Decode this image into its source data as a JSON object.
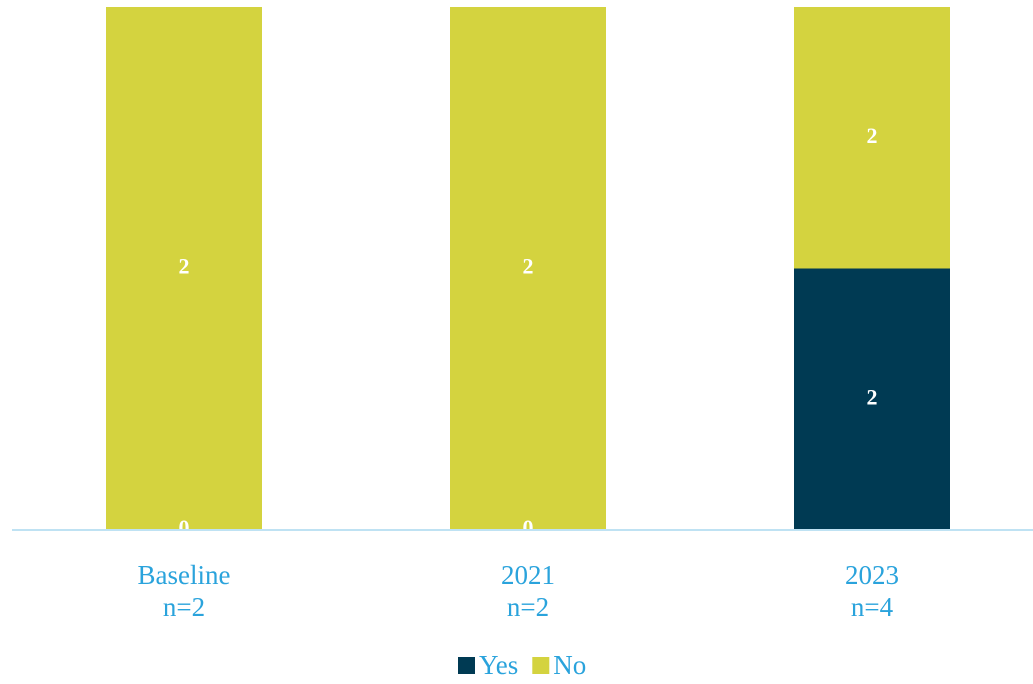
{
  "chart_data": {
    "type": "bar",
    "stacking": "percent",
    "categories": [
      [
        "Baseline",
        "n=2"
      ],
      [
        "2021",
        "n=2"
      ],
      [
        "2023",
        "n=4"
      ]
    ],
    "series": [
      {
        "name": "Yes",
        "color": "#003a53",
        "values": [
          0,
          0,
          2
        ]
      },
      {
        "name": "No",
        "color": "#d4d33f",
        "values": [
          2,
          2,
          2
        ]
      }
    ],
    "legend": "bottom"
  }
}
